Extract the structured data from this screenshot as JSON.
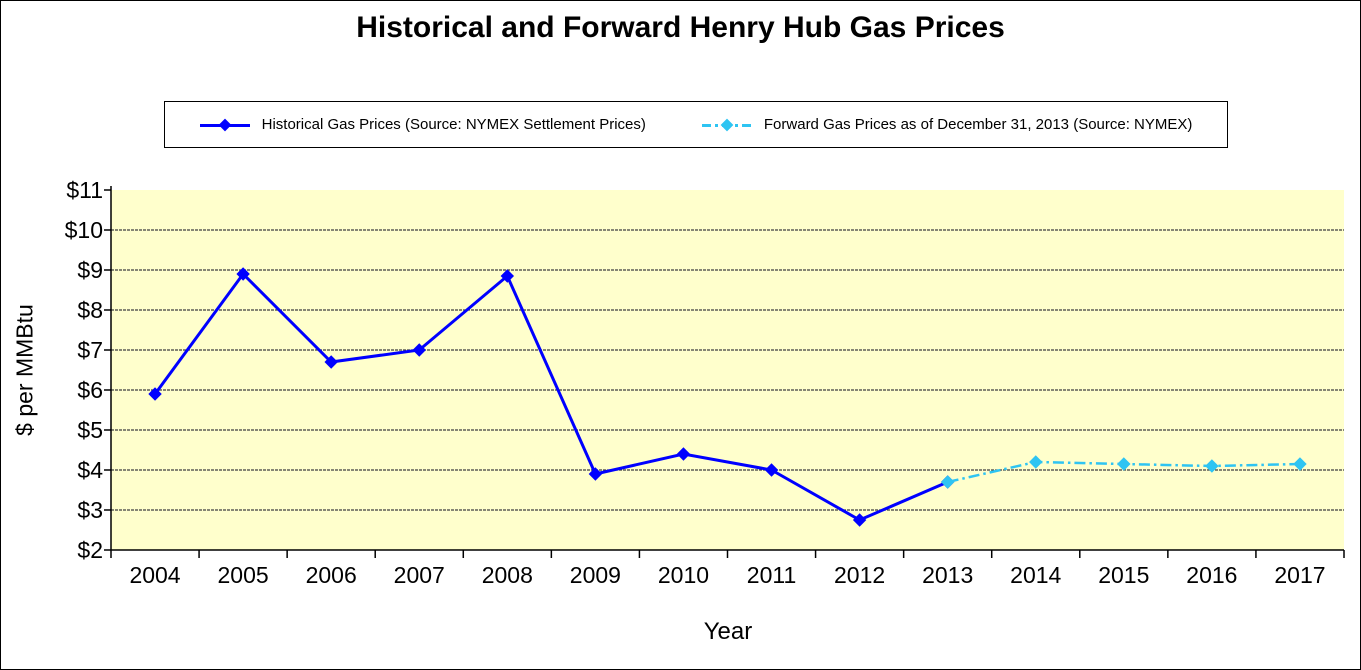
{
  "title": "Historical and Forward Henry Hub Gas Prices",
  "legend": {
    "historical_label": "Historical Gas Prices (Source: NYMEX Settlement Prices)",
    "forward_label": "Forward Gas Prices as of December 31, 2013 (Source: NYMEX)"
  },
  "colors": {
    "historical": "#0000FF",
    "forward": "#2EC4F2",
    "plot_bg": "#FFFFCC",
    "gridline": "#3F3F3F",
    "axis": "#000000",
    "text": "#000000"
  },
  "chart_data": {
    "type": "line",
    "title": "Historical and Forward Henry Hub Gas Prices",
    "xlabel": "Year",
    "ylabel": "$ per MMBtu",
    "categories": [
      "2004",
      "2005",
      "2006",
      "2007",
      "2008",
      "2009",
      "2010",
      "2011",
      "2012",
      "2013",
      "2014",
      "2015",
      "2016",
      "2017"
    ],
    "y_ticks": [
      "$2",
      "$3",
      "$4",
      "$5",
      "$6",
      "$7",
      "$8",
      "$9",
      "$10",
      "$11"
    ],
    "y_tick_values": [
      2,
      3,
      4,
      5,
      6,
      7,
      8,
      9,
      10,
      11
    ],
    "ylim": [
      2,
      11
    ],
    "grid": "horizontal",
    "legend_position": "top",
    "series": [
      {
        "name": "Historical Gas Prices (Source: NYMEX Settlement Prices)",
        "color": "#0000FF",
        "style": "solid",
        "marker": "diamond",
        "values": [
          5.9,
          8.9,
          6.7,
          7.0,
          8.85,
          3.9,
          4.4,
          4.0,
          2.75,
          3.7,
          null,
          null,
          null,
          null
        ]
      },
      {
        "name": "Forward Gas Prices as of December 31, 2013 (Source: NYMEX)",
        "color": "#2EC4F2",
        "style": "dash-dot",
        "marker": "diamond",
        "values": [
          null,
          null,
          null,
          null,
          null,
          null,
          null,
          null,
          null,
          3.7,
          4.2,
          4.15,
          4.1,
          4.15
        ]
      }
    ]
  }
}
